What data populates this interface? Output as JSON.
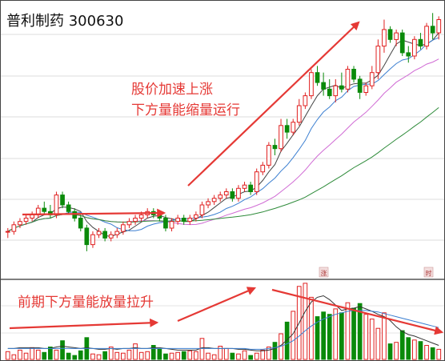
{
  "chart_data": {
    "type": "candlestick",
    "title": "普利制药 300630",
    "annotations": {
      "price": [
        "股价加速上涨",
        "下方量能缩量运行"
      ],
      "volume": "前期下方量能放量拉升"
    },
    "markers": [
      "涨",
      "时"
    ],
    "price_axis": {
      "ylim": [
        5,
        80
      ]
    },
    "volume_axis": {
      "ylim": [
        0,
        100
      ]
    },
    "candles": [
      [
        12.0,
        13.0,
        10.0,
        12.0
      ],
      [
        12.0,
        15.0,
        11.0,
        14.0
      ],
      [
        14.0,
        16.0,
        13.0,
        15.0
      ],
      [
        15.0,
        17.0,
        14.0,
        16.0
      ],
      [
        16.0,
        18.0,
        15.0,
        17.0
      ],
      [
        17.0,
        20.0,
        16.0,
        19.0
      ],
      [
        19.0,
        21.0,
        17.0,
        18.0
      ],
      [
        18.0,
        20.0,
        16.0,
        17.0
      ],
      [
        17.0,
        24.0,
        16.0,
        23.0
      ],
      [
        23.0,
        24.0,
        19.0,
        20.0
      ],
      [
        20.0,
        21.0,
        17.0,
        18.0
      ],
      [
        18.0,
        19.0,
        15.0,
        16.0
      ],
      [
        16.0,
        17.0,
        12.0,
        13.0
      ],
      [
        13.0,
        14.0,
        6.0,
        8.0
      ],
      [
        8.0,
        12.0,
        7.0,
        11.0
      ],
      [
        11.0,
        13.0,
        10.0,
        12.0
      ],
      [
        12.0,
        13.0,
        9.0,
        10.0
      ],
      [
        10.0,
        12.0,
        9.0,
        11.0
      ],
      [
        11.0,
        13.0,
        10.0,
        12.0
      ],
      [
        12.0,
        15.0,
        11.0,
        14.0
      ],
      [
        14.0,
        16.0,
        13.0,
        15.0
      ],
      [
        15.0,
        17.0,
        14.0,
        16.0
      ],
      [
        16.0,
        18.0,
        15.0,
        17.0
      ],
      [
        17.0,
        19.0,
        16.0,
        18.0
      ],
      [
        18.0,
        19.0,
        16.0,
        17.0
      ],
      [
        17.0,
        18.0,
        15.0,
        16.0
      ],
      [
        16.0,
        17.0,
        12.0,
        13.0
      ],
      [
        13.0,
        16.0,
        12.0,
        15.0
      ],
      [
        15.0,
        17.0,
        14.0,
        16.0
      ],
      [
        16.0,
        17.0,
        14.0,
        15.0
      ],
      [
        15.0,
        17.0,
        14.0,
        16.0
      ],
      [
        16.0,
        18.0,
        15.0,
        17.0
      ],
      [
        17.0,
        21.0,
        16.0,
        20.0
      ],
      [
        20.0,
        22.0,
        19.0,
        21.0
      ],
      [
        21.0,
        23.0,
        20.0,
        22.0
      ],
      [
        22.0,
        24.0,
        21.0,
        23.0
      ],
      [
        23.0,
        25.0,
        22.0,
        24.0
      ],
      [
        24.0,
        25.0,
        21.0,
        22.0
      ],
      [
        22.0,
        26.0,
        21.0,
        25.0
      ],
      [
        25.0,
        27.0,
        24.0,
        26.0
      ],
      [
        26.0,
        27.0,
        23.0,
        24.0
      ],
      [
        24.0,
        31.0,
        23.0,
        30.0
      ],
      [
        30.0,
        33.0,
        29.0,
        32.0
      ],
      [
        32.0,
        39.0,
        31.0,
        38.0
      ],
      [
        38.0,
        40.0,
        35.0,
        37.0
      ],
      [
        37.0,
        46.0,
        36.0,
        44.0
      ],
      [
        44.0,
        46.0,
        40.0,
        42.0
      ],
      [
        42.0,
        46.0,
        41.0,
        45.0
      ],
      [
        45.0,
        52.0,
        44.0,
        50.0
      ],
      [
        50.0,
        54.0,
        49.0,
        53.0
      ],
      [
        53.0,
        61.0,
        52.0,
        60.0
      ],
      [
        60.0,
        62.0,
        56.0,
        57.0
      ],
      [
        57.0,
        60.0,
        53.0,
        55.0
      ],
      [
        55.0,
        58.0,
        52.0,
        53.0
      ],
      [
        53.0,
        58.0,
        51.0,
        56.0
      ],
      [
        56.0,
        60.0,
        54.0,
        55.0
      ],
      [
        55.0,
        62.0,
        54.0,
        61.0
      ],
      [
        61.0,
        62.0,
        57.0,
        58.0
      ],
      [
        58.0,
        59.0,
        52.0,
        54.0
      ],
      [
        54.0,
        57.0,
        53.0,
        56.0
      ],
      [
        56.0,
        62.0,
        55.0,
        60.0
      ],
      [
        60.0,
        70.0,
        58.0,
        68.0
      ],
      [
        68.0,
        76.0,
        66.0,
        73.0
      ],
      [
        73.0,
        74.0,
        69.0,
        70.0
      ],
      [
        70.0,
        73.0,
        68.0,
        72.0
      ],
      [
        72.0,
        73.0,
        65.0,
        66.0
      ],
      [
        66.0,
        68.0,
        63.0,
        65.0
      ],
      [
        65.0,
        71.0,
        64.0,
        70.0
      ],
      [
        70.0,
        72.0,
        67.0,
        68.0
      ],
      [
        68.0,
        75.0,
        67.0,
        74.0
      ],
      [
        74.0,
        78.0,
        70.0,
        72.0
      ],
      [
        72.0,
        77.0,
        70.0,
        76.0
      ]
    ],
    "volumes": [
      10,
      6,
      12,
      8,
      15,
      12,
      9,
      16,
      12,
      24,
      8,
      5,
      11,
      28,
      7,
      6,
      10,
      16,
      9,
      8,
      12,
      20,
      9,
      10,
      18,
      13,
      7,
      8,
      9,
      10,
      11,
      10,
      27,
      8,
      6,
      17,
      14,
      8,
      7,
      11,
      5,
      8,
      12,
      16,
      22,
      33,
      48,
      62,
      94,
      98,
      80,
      55,
      61,
      58,
      65,
      60,
      73,
      66,
      72,
      58,
      52,
      40,
      60,
      20,
      22,
      37,
      28,
      25,
      23,
      18,
      15,
      13
    ],
    "ma_volume": [
      14,
      14,
      15,
      15,
      15,
      15,
      14,
      14,
      16,
      17,
      16,
      15,
      14,
      15,
      14,
      13,
      13,
      14,
      13,
      14,
      14,
      15,
      14,
      14,
      15,
      15,
      14,
      13,
      12,
      12,
      12,
      12,
      15,
      15,
      14,
      14,
      14,
      14,
      13,
      13,
      12,
      11,
      11,
      12,
      14,
      18,
      25,
      33,
      47,
      62,
      74,
      80,
      82,
      77,
      70,
      63,
      65,
      66,
      68,
      65,
      62,
      58,
      55,
      50,
      42,
      36,
      32,
      30,
      27,
      24,
      21,
      18
    ],
    "ma_volume_long": [
      14,
      14,
      14,
      14,
      14,
      14,
      14,
      14,
      14,
      14,
      14,
      14,
      14,
      14,
      14,
      14,
      14,
      14,
      14,
      14,
      14,
      14,
      14,
      14,
      14,
      14,
      14,
      14,
      14,
      14,
      14,
      14,
      14,
      14,
      14,
      14,
      14,
      14,
      14,
      14,
      13,
      13,
      13,
      14,
      15,
      17,
      20,
      24,
      30,
      37,
      43,
      48,
      52,
      55,
      58,
      60,
      62,
      63,
      63,
      63,
      62,
      61,
      59,
      57,
      55,
      53,
      51,
      49,
      47,
      45,
      43,
      41
    ]
  }
}
